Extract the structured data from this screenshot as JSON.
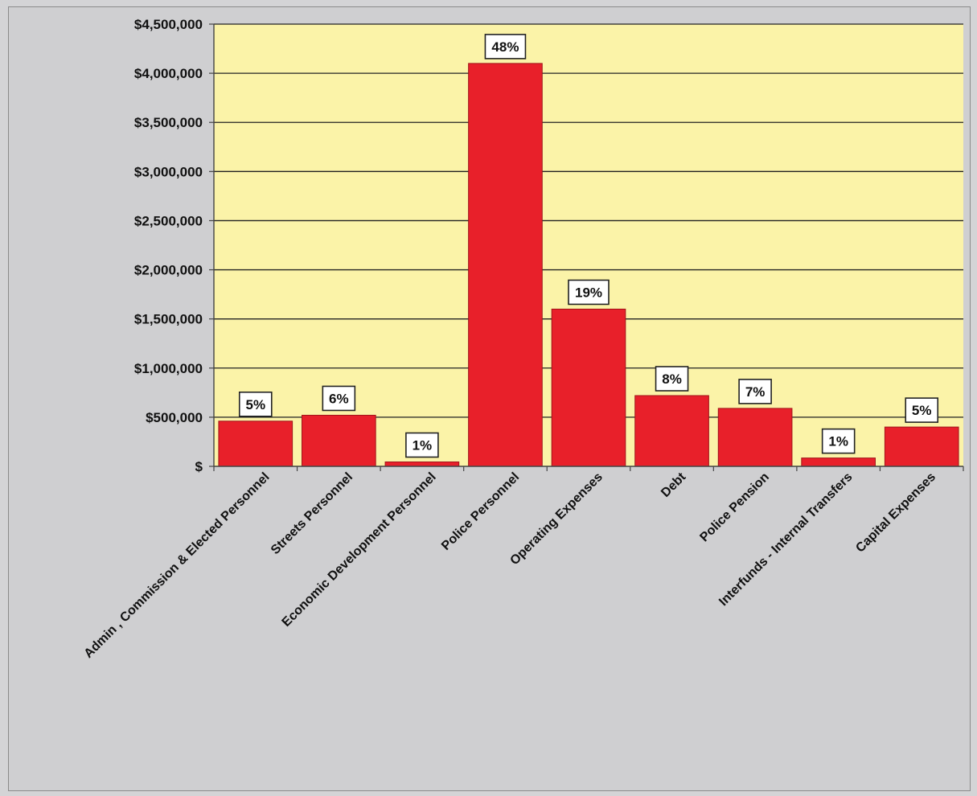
{
  "chart_data": {
    "type": "bar",
    "title": "",
    "xlabel": "",
    "ylabel": "",
    "ylim": [
      0,
      4500000
    ],
    "yticks": [
      0,
      500000,
      1000000,
      1500000,
      2000000,
      2500000,
      3000000,
      3500000,
      4000000,
      4500000
    ],
    "ytick_labels": [
      "$",
      "$500,000",
      "$1,000,000",
      "$1,500,000",
      "$2,000,000",
      "$2,500,000",
      "$3,000,000",
      "$3,500,000",
      "$4,000,000",
      "$4,500,000"
    ],
    "grid": true,
    "legend": "none",
    "colors": {
      "bar": "#e8202a",
      "bar_edge": "#a0141a",
      "plot_background": "#fbf3a8",
      "gridline": "#222222"
    },
    "categories": [
      "Admin , Commission & Elected Personnel",
      "Streets Personnel",
      "Economic Development Personnel",
      "Police Personnel",
      "Operating Expenses",
      "Debt",
      "Police Pension",
      "Interfunds - Internal Transfers",
      "Capital Expenses"
    ],
    "values": [
      460000,
      520000,
      45000,
      4100000,
      1600000,
      720000,
      590000,
      85000,
      400000
    ],
    "data_labels": [
      "5%",
      "6%",
      "1%",
      "48%",
      "19%",
      "8%",
      "7%",
      "1%",
      "5%"
    ]
  }
}
